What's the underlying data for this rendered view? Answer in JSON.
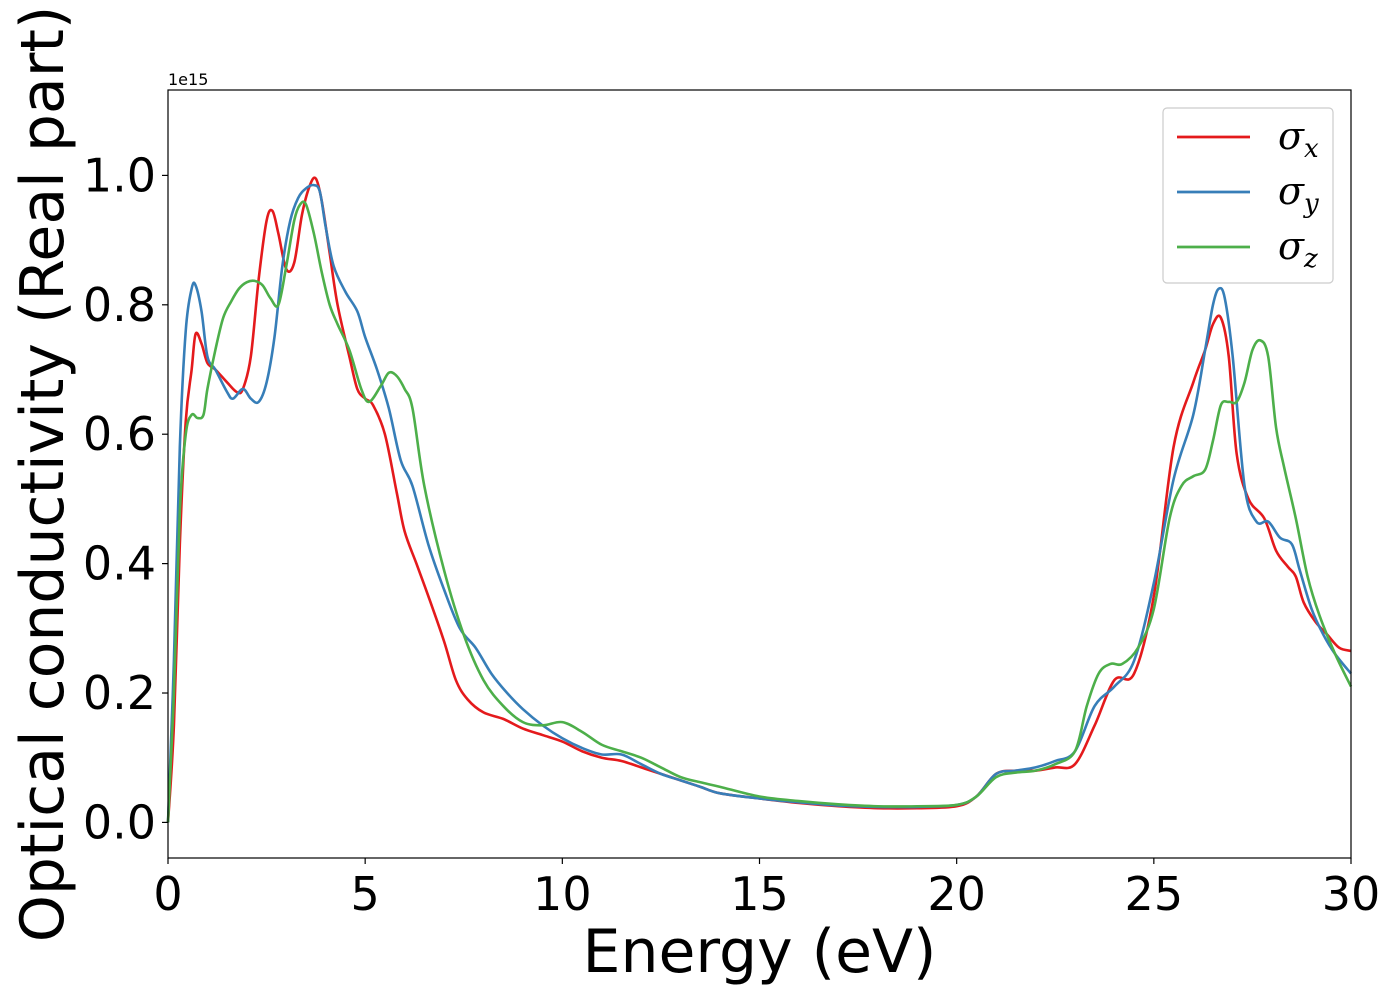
{
  "chart_data": {
    "type": "line",
    "title": "",
    "xlabel": "Energy (eV)",
    "ylabel": "Optical conductivity (Real part)",
    "y_offset_text": "1e15",
    "xlim": [
      0,
      30
    ],
    "ylim": [
      -0.055,
      1.132
    ],
    "x_ticks": [
      "0",
      "5",
      "10",
      "15",
      "20",
      "25",
      "30"
    ],
    "y_ticks": [
      "0.0",
      "0.2",
      "0.4",
      "0.6",
      "0.8",
      "1.0"
    ],
    "grid": false,
    "legend_position": "top-right",
    "series": [
      {
        "name": "σx",
        "symbol": "σ",
        "subscript": "x",
        "color": "#e41a1c",
        "x": [
          0.0,
          0.15,
          0.3,
          0.45,
          0.6,
          0.7,
          0.85,
          1.0,
          1.2,
          1.5,
          1.75,
          1.9,
          2.1,
          2.3,
          2.5,
          2.65,
          2.8,
          3.0,
          3.2,
          3.4,
          3.6,
          3.75,
          3.9,
          4.1,
          4.3,
          4.6,
          4.8,
          5.0,
          5.2,
          5.5,
          5.8,
          6.0,
          6.3,
          6.6,
          7.0,
          7.3,
          7.6,
          8.0,
          8.5,
          9.0,
          9.5,
          10.0,
          10.5,
          11.0,
          11.5,
          12.0,
          12.5,
          13.0,
          13.5,
          14.0,
          15.0,
          16.0,
          17.0,
          18.0,
          19.0,
          20.0,
          20.5,
          21.0,
          21.5,
          22.0,
          22.5,
          23.0,
          23.5,
          24.0,
          24.5,
          25.0,
          25.5,
          26.0,
          26.3,
          26.5,
          26.7,
          26.9,
          27.1,
          27.4,
          27.8,
          28.1,
          28.4,
          28.6,
          28.8,
          29.1,
          29.4,
          29.7,
          30.0
        ],
        "values": [
          0.0,
          0.15,
          0.43,
          0.62,
          0.7,
          0.755,
          0.74,
          0.71,
          0.7,
          0.68,
          0.665,
          0.67,
          0.72,
          0.84,
          0.93,
          0.945,
          0.91,
          0.855,
          0.865,
          0.94,
          0.985,
          0.995,
          0.96,
          0.88,
          0.8,
          0.72,
          0.67,
          0.655,
          0.645,
          0.6,
          0.51,
          0.45,
          0.4,
          0.35,
          0.28,
          0.22,
          0.19,
          0.17,
          0.16,
          0.145,
          0.135,
          0.125,
          0.11,
          0.1,
          0.095,
          0.085,
          0.075,
          0.065,
          0.055,
          0.045,
          0.037,
          0.03,
          0.025,
          0.022,
          0.022,
          0.025,
          0.04,
          0.075,
          0.08,
          0.08,
          0.085,
          0.09,
          0.15,
          0.22,
          0.23,
          0.35,
          0.58,
          0.68,
          0.73,
          0.77,
          0.78,
          0.72,
          0.57,
          0.5,
          0.47,
          0.42,
          0.395,
          0.38,
          0.34,
          0.31,
          0.29,
          0.27,
          0.265
        ]
      },
      {
        "name": "σy",
        "symbol": "σ",
        "subscript": "y",
        "color": "#377eb8",
        "x": [
          0.0,
          0.15,
          0.3,
          0.45,
          0.6,
          0.7,
          0.85,
          1.0,
          1.2,
          1.5,
          1.65,
          1.9,
          2.1,
          2.3,
          2.5,
          2.7,
          2.9,
          3.1,
          3.3,
          3.5,
          3.7,
          3.85,
          4.0,
          4.2,
          4.5,
          4.8,
          5.0,
          5.3,
          5.6,
          5.9,
          6.2,
          6.6,
          7.0,
          7.4,
          7.8,
          8.2,
          8.6,
          9.0,
          9.5,
          10.0,
          10.5,
          11.0,
          11.5,
          12.0,
          12.5,
          13.0,
          13.5,
          14.0,
          15.0,
          16.0,
          17.0,
          18.0,
          19.0,
          20.0,
          20.5,
          21.0,
          21.5,
          22.0,
          22.5,
          23.0,
          23.5,
          24.0,
          24.5,
          25.0,
          25.5,
          26.0,
          26.3,
          26.5,
          26.65,
          26.8,
          27.0,
          27.3,
          27.6,
          27.9,
          28.2,
          28.5,
          28.7,
          29.0,
          29.3,
          29.6,
          30.0
        ],
        "values": [
          0.0,
          0.25,
          0.58,
          0.76,
          0.825,
          0.83,
          0.79,
          0.72,
          0.7,
          0.665,
          0.655,
          0.67,
          0.655,
          0.65,
          0.68,
          0.75,
          0.86,
          0.93,
          0.965,
          0.98,
          0.985,
          0.975,
          0.92,
          0.86,
          0.82,
          0.79,
          0.75,
          0.7,
          0.64,
          0.56,
          0.52,
          0.43,
          0.36,
          0.3,
          0.27,
          0.23,
          0.2,
          0.175,
          0.15,
          0.13,
          0.115,
          0.105,
          0.105,
          0.09,
          0.075,
          0.065,
          0.055,
          0.045,
          0.037,
          0.031,
          0.026,
          0.024,
          0.024,
          0.027,
          0.04,
          0.075,
          0.08,
          0.085,
          0.095,
          0.11,
          0.18,
          0.21,
          0.25,
          0.37,
          0.53,
          0.63,
          0.73,
          0.8,
          0.825,
          0.81,
          0.72,
          0.52,
          0.465,
          0.465,
          0.44,
          0.43,
          0.39,
          0.33,
          0.29,
          0.26,
          0.23
        ]
      },
      {
        "name": "σz",
        "symbol": "σ",
        "subscript": "z",
        "color": "#4daf4a",
        "x": [
          0.0,
          0.15,
          0.3,
          0.45,
          0.6,
          0.75,
          0.9,
          1.0,
          1.2,
          1.4,
          1.6,
          1.8,
          2.0,
          2.2,
          2.4,
          2.6,
          2.8,
          3.0,
          3.2,
          3.35,
          3.5,
          3.7,
          3.9,
          4.1,
          4.3,
          4.6,
          4.9,
          5.1,
          5.4,
          5.6,
          5.8,
          6.0,
          6.2,
          6.5,
          7.0,
          7.5,
          8.0,
          8.5,
          9.0,
          9.5,
          10.0,
          10.5,
          11.0,
          11.5,
          12.0,
          12.5,
          13.0,
          13.5,
          14.0,
          15.0,
          16.0,
          17.0,
          18.0,
          19.0,
          20.0,
          20.5,
          21.0,
          21.5,
          22.0,
          22.5,
          23.0,
          23.3,
          23.6,
          23.9,
          24.2,
          24.6,
          25.0,
          25.4,
          25.7,
          26.0,
          26.3,
          26.5,
          26.7,
          26.9,
          27.1,
          27.3,
          27.5,
          27.7,
          27.9,
          28.1,
          28.3,
          28.6,
          28.9,
          29.2,
          29.6,
          30.0
        ],
        "values": [
          0.0,
          0.2,
          0.48,
          0.6,
          0.63,
          0.625,
          0.63,
          0.67,
          0.73,
          0.78,
          0.805,
          0.825,
          0.835,
          0.837,
          0.83,
          0.81,
          0.8,
          0.86,
          0.93,
          0.955,
          0.955,
          0.91,
          0.85,
          0.8,
          0.77,
          0.73,
          0.67,
          0.65,
          0.675,
          0.695,
          0.69,
          0.67,
          0.64,
          0.52,
          0.39,
          0.29,
          0.22,
          0.18,
          0.155,
          0.15,
          0.155,
          0.14,
          0.12,
          0.11,
          0.1,
          0.085,
          0.07,
          0.062,
          0.055,
          0.04,
          0.033,
          0.028,
          0.025,
          0.025,
          0.027,
          0.04,
          0.07,
          0.077,
          0.08,
          0.09,
          0.11,
          0.18,
          0.23,
          0.245,
          0.245,
          0.27,
          0.33,
          0.47,
          0.52,
          0.535,
          0.545,
          0.59,
          0.645,
          0.65,
          0.65,
          0.68,
          0.73,
          0.745,
          0.72,
          0.61,
          0.55,
          0.47,
          0.38,
          0.32,
          0.26,
          0.21
        ]
      }
    ]
  }
}
